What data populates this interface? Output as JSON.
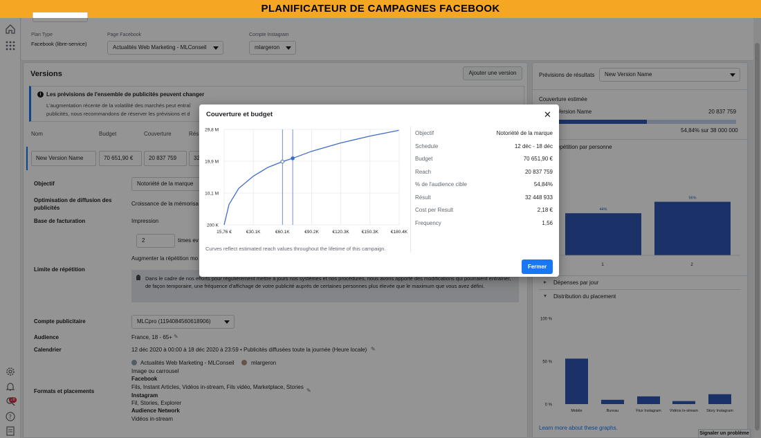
{
  "banner": {
    "title": "PLANIFICATEUR DE CAMPAGNES FACEBOOK"
  },
  "header": {
    "plan_type_label": "Plan Type",
    "plan_type_value": "Facebook (libre-service)",
    "facebook_page_label": "Page Facebook",
    "facebook_page_value": "Actualités Web Marketing - MLConseil",
    "instagram_label": "Compte Instagram",
    "instagram_value": "mlargeron"
  },
  "versions": {
    "title": "Versions",
    "add_button": "Ajouter une version",
    "notice_title": "Les prévisions de l'ensemble de publicités peuvent changer",
    "notice_body_1": "L'augmentation récente de la volatilité des marchés peut entraî",
    "notice_body_2": "publicités, nous recommandons de réserver les prévisions et d",
    "columns": [
      "Nom",
      "Budget",
      "Couverture",
      "Rés"
    ],
    "row": {
      "name": "New Version Name",
      "budget": "70 651,90 €",
      "coverage": "20 837 759",
      "result": "32 4"
    }
  },
  "settings": {
    "objective_label": "Objectif",
    "objective_value": "Notoriété de la marque",
    "optimisation_label": "Optimisation de diffusion des publicités",
    "optimisation_value": "Croissance de la mémorisa",
    "billing_label": "Base de facturation",
    "billing_value": "Impression",
    "frequency_value": "2",
    "frequency_unit": "times ev",
    "repetition_hint": "Augmenter la répétition mo",
    "repetition_label": "Limite de répétition",
    "repetition_note": "Dans le cadre de nos efforts pour régulièrement mettre à jours nos systèmes et nos procédures, nous avons apporté des modifications qui pourraient entraîner, de façon temporaire, une fréquence d'affichage de votre publicité auprès de certaines personnes plus élevée que le maximum que vous avez défini.",
    "ad_account_label": "Compte publicitaire",
    "ad_account_value": "MLCpro (1194084560618906)",
    "audience_label": "Audience",
    "audience_value": "France, 18 - 65+",
    "calendar_label": "Calendrier",
    "calendar_value": "12 déc 2020 à 00:00 à 18 déc 2020 à 23:59 • Publicités diffusées toute la journée (Heure locale)",
    "formats_label": "Formats et placements",
    "fmt_page": "Actualités Web Marketing - MLConseil",
    "fmt_insta": "mlargeron",
    "fmt_type": "Image ou carrousel",
    "fmt_fb_title": "Facebook",
    "fmt_fb_list": "Fils, Instant Articles, Vidéos in-stream, Fils vidéo, Marketplace, Stories",
    "fmt_ig_title": "Instagram",
    "fmt_ig_list": "Fil, Stories, Explorer",
    "fmt_an_title": "Audience Network",
    "fmt_an_list": "Vidéos in-stream"
  },
  "forecast": {
    "label": "Prévisions de résultats",
    "version_select": "New Version Name",
    "coverage_title": "Couverture estimée",
    "version_name": "Version Name",
    "coverage_value": "20 837 759",
    "coverage_ratio": "54,84% sur 38 000 000",
    "coverage_fill": 0.5484,
    "repetition_title": "épétition par personne",
    "daily_spend": "Dépenses par jour",
    "placement_dist": "Distribution du placement",
    "learn_more": "Learn more about these graphs.",
    "report_problem": "Signaler un problème"
  },
  "modal": {
    "title": "Couverture et budget",
    "close_icon": "close-icon",
    "caption": "Curves reflect estimated reach values throughout the lifetime of this campaign.",
    "button": "Fermer",
    "summary": [
      {
        "k": "Objectif",
        "v": "Notoriété de la marque"
      },
      {
        "k": "Schedule",
        "v": "12 déc - 18 déc"
      },
      {
        "k": "Budget",
        "v": "70 651,90 €"
      },
      {
        "k": "Reach",
        "v": "20 837 759"
      },
      {
        "k": "% de l'audience cible",
        "v": "54,84%"
      },
      {
        "k": "Résult",
        "v": "32 448 933"
      },
      {
        "k": "Cost per Result",
        "v": "2,18 €"
      },
      {
        "k": "Frequency",
        "v": "1,56"
      }
    ]
  },
  "chart_data": [
    {
      "type": "line",
      "title": "Couverture et budget",
      "x_tick_labels": [
        "15,76 €",
        "€30.1K",
        "€60.1K",
        "€90.2K",
        "€120.3K",
        "€150.3K",
        "€180.4K"
      ],
      "y_tick_labels": [
        "200 K",
        "10,1 M",
        "19,9 M",
        "29,8 M"
      ],
      "x": [
        0,
        5000,
        15000,
        30000,
        45000,
        60000,
        70652,
        90000,
        120000,
        150000,
        180000
      ],
      "y": [
        0.2,
        6.5,
        11.5,
        15.3,
        18.0,
        19.8,
        20.84,
        23.0,
        25.6,
        27.7,
        29.5
      ],
      "x_unit": "€",
      "y_unit": "M",
      "xlim": [
        0,
        180400
      ],
      "ylim": [
        0.2,
        29.8
      ],
      "markers_x": [
        60100,
        70652
      ]
    },
    {
      "type": "bar",
      "title": "Répétition par personne",
      "categories": [
        "1",
        "2"
      ],
      "values": [
        44,
        56
      ],
      "data_labels": [
        "44%",
        "56%"
      ],
      "ylim": [
        0,
        100
      ]
    },
    {
      "type": "bar",
      "title": "Distribution du placement",
      "categories": [
        "Mobile",
        "Bureau",
        "Flux Instagram",
        "Vidéos in-stream",
        "Story Instagram"
      ],
      "values": [
        53,
        5,
        9,
        3.5,
        11.5
      ],
      "y_tick_labels": [
        "0 %",
        "50 %",
        "100 %"
      ],
      "ylim": [
        0,
        100
      ]
    }
  ]
}
